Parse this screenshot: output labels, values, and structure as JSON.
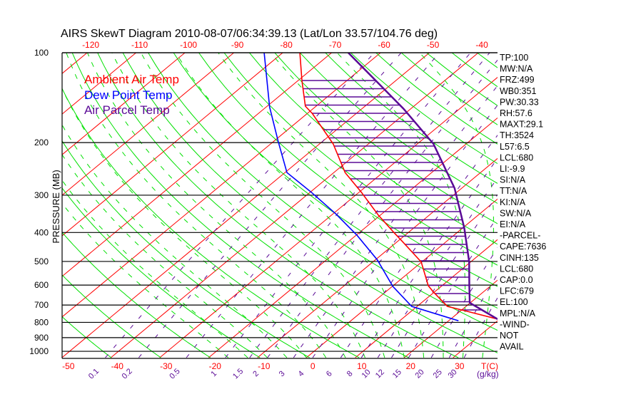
{
  "chart_data": {
    "type": "line",
    "subtype": "skew-t log-p",
    "title": "AIRS SkewT Diagram 2010-08-07/06:34:39.13 (Lat/Lon 33.57/104.76 deg)",
    "ylabel": "PRESSURE (MB)",
    "xlabel": "T(C)",
    "mixing_ratio_label": "(g/kg)",
    "ylim": [
      1050,
      100
    ],
    "pressure_ticks": [
      100,
      200,
      300,
      400,
      500,
      600,
      700,
      800,
      900,
      1000
    ],
    "bottom_temp_ticks": [
      -50,
      -40,
      -30,
      -20,
      -10,
      0,
      10,
      20,
      30
    ],
    "top_temp_ticks": [
      -120,
      -110,
      -100,
      -90,
      -80,
      -70,
      -60,
      -50,
      -40
    ],
    "mixing_ratio_ticks": [
      0.1,
      0.2,
      0.5,
      1,
      1.5,
      2,
      3,
      4,
      6,
      8,
      10,
      12,
      15,
      20,
      25,
      30
    ],
    "legend": [
      {
        "label": "Ambient Air Temp",
        "color": "#ff0000"
      },
      {
        "label": "Dew Point Temp",
        "color": "#0000ff"
      },
      {
        "label": "Air Parcel Temp",
        "color": "#5a0a96"
      }
    ],
    "series": [
      {
        "name": "Ambient Air Temp",
        "color": "#ff0000",
        "p": [
          100,
          124,
          151,
          160,
          202,
          252,
          294,
          350,
          401,
          428,
          502,
          603,
          633,
          707,
          727,
          780
        ],
        "t": [
          -76.5,
          -69.2,
          -62.2,
          -58.9,
          -47.2,
          -37.7,
          -29.4,
          -20.4,
          -12.8,
          -9.1,
          -0.1,
          7.2,
          9.8,
          16.2,
          20.0,
          29.6
        ]
      },
      {
        "name": "Dew Point Temp",
        "color": "#0000ff",
        "p": [
          100,
          152,
          198,
          252,
          294,
          346,
          408,
          494,
          606,
          707,
          790
        ],
        "t": [
          -83.8,
          -69.3,
          -59.1,
          -49.6,
          -39.6,
          -29.5,
          -19.9,
          -9.6,
          0.1,
          8.9,
          22.0
        ]
      },
      {
        "name": "Air Parcel Temp",
        "color": "#5a0a96",
        "p": [
          100,
          154,
          202,
          284,
          386,
          502,
          605,
          688,
          780
        ],
        "t": [
          -66.6,
          -41.5,
          -26.7,
          -11.5,
          0.3,
          9.7,
          15.7,
          19.9,
          29.6
        ]
      }
    ],
    "grid": true,
    "colors": {
      "isotherm": "#ff0000",
      "dry_adiabat": "#00e000",
      "moist_adiabat": "#00e000",
      "mixing_ratio": "#5a0a96",
      "isobar": "#000000"
    }
  },
  "indices": [
    "TP:100",
    "MW:N/A",
    "FRZ:499",
    "WB0:351",
    "PW:30.33",
    "RH:57.6",
    "MAXT:29.1",
    "TH:3524",
    "L57:6.5",
    "LCL:680",
    "LI:-9.9",
    "SI:N/A",
    "TT:N/A",
    "KI:N/A",
    "SW:N/A",
    "EI:N/A",
    "-PARCEL-",
    "CAPE:7636",
    "CINH:135",
    "LCL:680",
    "CAP:0.0",
    "LFC:679",
    "EL:100",
    "MPL:N/A",
    "-WIND-",
    "NOT",
    "AVAIL"
  ]
}
